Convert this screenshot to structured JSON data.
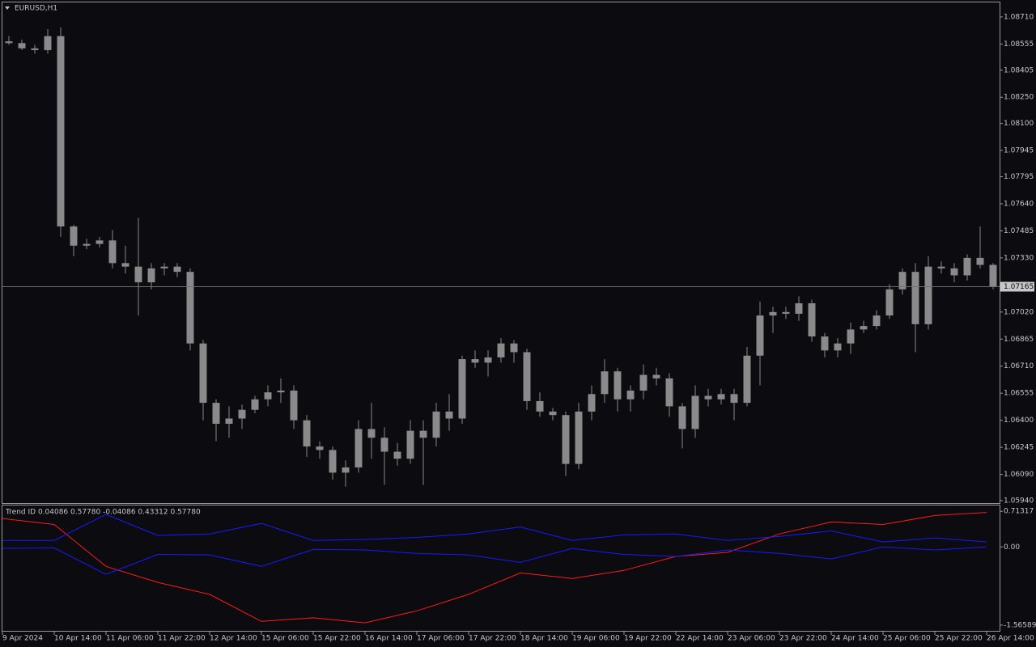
{
  "chart_data": [
    {
      "type": "candlestick",
      "title": "EURUSD,H1",
      "color": "#8a8a8a",
      "ylim": [
        1.05926,
        1.08793
      ],
      "yticks": [
        {
          "value": 1.0871,
          "label": "1.08710"
        },
        1.08555,
        {
          "value": 1.08405,
          "label": "1.08405"
        },
        {
          "value": 1.0825,
          "label": "1.08250"
        },
        {
          "value": 1.081,
          "label": "1.08100"
        },
        1.07945,
        1.07795,
        {
          "value": 1.0764,
          "label": "1.07640"
        },
        1.07485,
        {
          "value": 1.0733,
          "label": "1.07330"
        },
        {
          "value": 1.0702,
          "label": "1.07020"
        },
        1.06865,
        {
          "value": 1.0671,
          "label": "1.06710"
        },
        1.06555,
        {
          "value": 1.064,
          "label": "1.06400"
        },
        1.06245,
        {
          "value": 1.0609,
          "label": "1.06090"
        },
        {
          "value": 1.0594,
          "label": "1.05940"
        }
      ],
      "current_price": 1.07165,
      "current_price_color": "#6e6e6e",
      "series": [
        {
          "open": [
            1.0857,
            1.0856,
            1.0853,
            1.0852,
            1.086,
            1.0751,
            1.074,
            1.0741,
            1.0743,
            1.073,
            1.0728,
            1.0719,
            1.0727,
            1.0728,
            1.0725,
            1.0684,
            1.065,
            1.0638,
            1.0641,
            1.0646,
            1.0652,
            1.0656,
            1.0657,
            1.064,
            1.0625,
            1.0623,
            1.061,
            1.0613,
            1.0635,
            1.063,
            1.0622,
            1.0618,
            1.0634,
            1.063,
            1.0645,
            1.0641,
            1.0675,
            1.0673,
            1.0676,
            1.0684,
            1.0679,
            1.0651,
            1.0645,
            1.0643,
            1.0615,
            1.0645,
            1.0655,
            1.0668,
            1.0652,
            1.0657,
            1.0666,
            1.0664,
            1.0648,
            1.0635,
            1.0654,
            1.0652,
            1.0655,
            1.065,
            1.0677,
            1.07,
            1.0702,
            1.0701,
            1.0707,
            1.0688,
            1.068,
            1.0684,
            1.0692,
            1.0694,
            1.07,
            1.0715,
            1.0725,
            1.0695,
            1.0728,
            1.0727,
            1.0723,
            1.0733,
            1.0729
          ],
          "high": [
            1.086,
            1.0858,
            1.0855,
            1.0864,
            1.0865,
            1.0752,
            1.0744,
            1.0745,
            1.0749,
            1.074,
            1.0756,
            1.073,
            1.073,
            1.073,
            1.0727,
            1.0686,
            1.0652,
            1.0648,
            1.0649,
            1.0654,
            1.066,
            1.0664,
            1.066,
            1.0643,
            1.0628,
            1.0625,
            1.0617,
            1.064,
            1.065,
            1.0636,
            1.0627,
            1.064,
            1.064,
            1.065,
            1.0655,
            1.0677,
            1.068,
            1.068,
            1.0687,
            1.0686,
            1.0681,
            1.0656,
            1.0647,
            1.0645,
            1.065,
            1.066,
            1.0675,
            1.067,
            1.066,
            1.0672,
            1.067,
            1.0667,
            1.065,
            1.066,
            1.0658,
            1.0658,
            1.0658,
            1.0682,
            1.0708,
            1.0705,
            1.0705,
            1.0711,
            1.0709,
            1.069,
            1.0687,
            1.0696,
            1.0697,
            1.0703,
            1.0718,
            1.0727,
            1.073,
            1.0734,
            1.0731,
            1.073,
            1.0735,
            1.0751,
            1.073
          ],
          "low": [
            1.0855,
            1.0852,
            1.085,
            1.085,
            1.0745,
            1.0734,
            1.0738,
            1.0739,
            1.0727,
            1.0724,
            1.07,
            1.0715,
            1.0723,
            1.0722,
            1.068,
            1.064,
            1.0628,
            1.063,
            1.0635,
            1.0644,
            1.0648,
            1.065,
            1.0635,
            1.0619,
            1.0618,
            1.0606,
            1.0602,
            1.061,
            1.0618,
            1.0603,
            1.0614,
            1.0615,
            1.0603,
            1.0625,
            1.0634,
            1.0638,
            1.067,
            1.0665,
            1.0673,
            1.0673,
            1.0646,
            1.0642,
            1.064,
            1.0608,
            1.0612,
            1.064,
            1.065,
            1.0645,
            1.0645,
            1.0652,
            1.066,
            1.0642,
            1.0624,
            1.063,
            1.0648,
            1.0649,
            1.064,
            1.0648,
            1.066,
            1.069,
            1.0698,
            1.0697,
            1.0685,
            1.0676,
            1.0676,
            1.0678,
            1.069,
            1.0692,
            1.0698,
            1.0712,
            1.0679,
            1.0692,
            1.0724,
            1.0719,
            1.072,
            1.0727,
            1.0715
          ],
          "close": [
            1.0856,
            1.0853,
            1.0852,
            1.086,
            1.0751,
            1.074,
            1.0741,
            1.0743,
            1.073,
            1.0728,
            1.0719,
            1.0727,
            1.0728,
            1.0725,
            1.0684,
            1.065,
            1.0638,
            1.0641,
            1.0646,
            1.0652,
            1.0656,
            1.0657,
            1.064,
            1.0625,
            1.0623,
            1.061,
            1.0613,
            1.0635,
            1.063,
            1.0622,
            1.0618,
            1.0634,
            1.063,
            1.0645,
            1.0641,
            1.0675,
            1.0673,
            1.0676,
            1.0684,
            1.0679,
            1.0651,
            1.0645,
            1.0643,
            1.0615,
            1.0645,
            1.0655,
            1.0668,
            1.0652,
            1.0657,
            1.0666,
            1.0664,
            1.0648,
            1.0635,
            1.0654,
            1.0652,
            1.0655,
            1.065,
            1.0677,
            1.07,
            1.0702,
            1.0701,
            1.0707,
            1.0688,
            1.068,
            1.0684,
            1.0692,
            1.0694,
            1.07,
            1.0715,
            1.0725,
            1.0695,
            1.0728,
            1.0727,
            1.0723,
            1.0733,
            1.0729,
            1.07165
          ]
        }
      ]
    },
    {
      "type": "line",
      "title": "Trend ID 0.04086 0.57780 -0.04086 0.43312 0.57780",
      "categories": [
        "9 Apr 2024",
        "10 Apr 14:00",
        "11 Apr 06:00",
        "11 Apr 22:00",
        "12 Apr 14:00",
        "15 Apr 06:00",
        "15 Apr 22:00",
        "16 Apr 14:00",
        "17 Apr 06:00",
        "17 Apr 22:00",
        "18 Apr 14:00",
        "19 Apr 06:00",
        "19 Apr 22:00",
        "22 Apr 14:00",
        "23 Apr 06:00",
        "23 Apr 22:00",
        "24 Apr 14:00",
        "25 Apr 06:00",
        "25 Apr 22:00",
        "26 Apr 14:00"
      ],
      "ylim": [
        -1.68,
        0.83
      ],
      "yticks": [
        0.71317,
        {
          "value": 0,
          "label": "0.00"
        },
        -1.56589
      ],
      "series": [
        {
          "color": "#ff1a1a",
          "values": [
            0.57,
            0.45,
            -0.39,
            -0.71,
            -0.95,
            -1.49,
            -1.42,
            -1.52,
            -1.28,
            -0.95,
            -0.52,
            -0.63,
            -0.47,
            -0.19,
            -0.11,
            0.26,
            0.5,
            0.45,
            0.63,
            0.69
          ]
        },
        {
          "color": "#1a1aff",
          "values": [
            0.13,
            0.13,
            0.65,
            0.23,
            0.26,
            0.47,
            0.13,
            0.15,
            0.19,
            0.26,
            0.4,
            0.13,
            0.24,
            0.26,
            0.13,
            0.21,
            0.32,
            0.1,
            0.18,
            0.1
          ]
        },
        {
          "color": "#1a1aff",
          "values": [
            -0.03,
            -0.02,
            -0.55,
            -0.15,
            -0.16,
            -0.39,
            -0.05,
            -0.06,
            -0.13,
            -0.16,
            -0.31,
            -0.03,
            -0.15,
            -0.19,
            -0.06,
            -0.13,
            -0.24,
            0.0,
            -0.06,
            0.0
          ]
        }
      ]
    }
  ]
}
